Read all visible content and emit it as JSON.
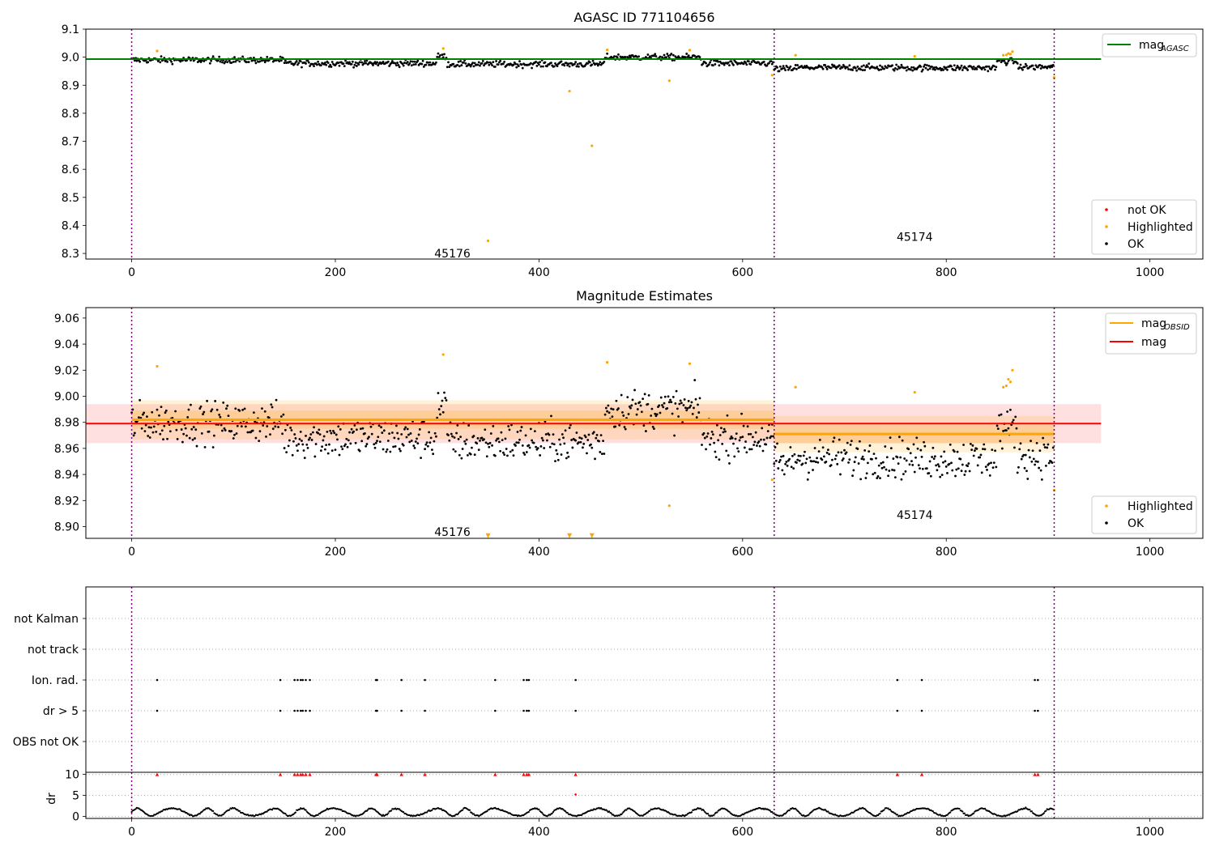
{
  "chart_data": [
    {
      "id": "agasc",
      "type": "scatter",
      "title": "AGASC ID 771104656",
      "xlim": [
        -45,
        1052
      ],
      "ylim": [
        8.28,
        9.1
      ],
      "xticks": [
        0,
        200,
        400,
        600,
        800,
        1000
      ],
      "yticks": [
        8.3,
        8.4,
        8.5,
        8.6,
        8.7,
        8.8,
        8.9,
        9.0,
        9.1
      ],
      "ytick_decimals": 1,
      "grid": false,
      "obs_boundaries": [
        0,
        631,
        906
      ],
      "obs_labels": [
        {
          "text": "45176",
          "x": 315,
          "y": 8.3
        },
        {
          "text": "45174",
          "x": 769,
          "y": 8.36
        }
      ],
      "mag_agasc": {
        "value": 8.993,
        "x_range": [
          -45,
          952
        ],
        "color": "#008000"
      },
      "baseline": {
        "segments": [
          {
            "x0": 0,
            "x1": 150,
            "level": 8.99
          },
          {
            "x0": 150,
            "x1": 300,
            "level": 8.978
          },
          {
            "x0": 300,
            "x1": 310,
            "level": 9.002
          },
          {
            "x0": 310,
            "x1": 465,
            "level": 8.975
          },
          {
            "x0": 465,
            "x1": 560,
            "level": 9.0
          },
          {
            "x0": 560,
            "x1": 631,
            "level": 8.978
          },
          {
            "x0": 631,
            "x1": 650,
            "level": 8.958
          },
          {
            "x0": 650,
            "x1": 760,
            "level": 8.963
          },
          {
            "x0": 760,
            "x1": 850,
            "level": 8.962
          },
          {
            "x0": 850,
            "x1": 870,
            "level": 8.985
          },
          {
            "x0": 870,
            "x1": 906,
            "level": 8.965
          }
        ],
        "noise": 0.008,
        "n": 906
      },
      "highlighted": [
        {
          "x": 25,
          "y": 9.022
        },
        {
          "x": 306,
          "y": 9.031
        },
        {
          "x": 350,
          "y": 8.345
        },
        {
          "x": 430,
          "y": 8.879
        },
        {
          "x": 452,
          "y": 8.684
        },
        {
          "x": 467,
          "y": 9.026
        },
        {
          "x": 528,
          "y": 8.916
        },
        {
          "x": 548,
          "y": 9.025
        },
        {
          "x": 629,
          "y": 8.936
        },
        {
          "x": 652,
          "y": 9.007
        },
        {
          "x": 769,
          "y": 9.003
        },
        {
          "x": 856,
          "y": 9.007
        },
        {
          "x": 859,
          "y": 9.008
        },
        {
          "x": 861,
          "y": 9.013
        },
        {
          "x": 863,
          "y": 9.011
        },
        {
          "x": 865,
          "y": 9.02
        },
        {
          "x": 906,
          "y": 8.928
        }
      ],
      "legend_top": [
        {
          "label": "mag",
          "subscript": "AGASC",
          "color": "#008000",
          "marker": "line"
        }
      ],
      "legend_bottom": [
        {
          "label": "not OK",
          "color": "#ff0000"
        },
        {
          "label": "Highlighted",
          "color": "#ffa500"
        },
        {
          "label": "OK",
          "color": "#000000"
        }
      ]
    },
    {
      "id": "estimates",
      "type": "scatter",
      "title": "Magnitude Estimates",
      "xlim": [
        -45,
        1052
      ],
      "ylim": [
        8.891,
        9.068
      ],
      "xticks": [
        0,
        200,
        400,
        600,
        800,
        1000
      ],
      "yticks": [
        8.9,
        8.92,
        8.94,
        8.96,
        8.98,
        9.0,
        9.02,
        9.04,
        9.06
      ],
      "ytick_decimals": 2,
      "grid": false,
      "obs_boundaries": [
        0,
        631,
        906
      ],
      "obs_labels": [
        {
          "text": "45176",
          "x": 315,
          "y": 8.896
        },
        {
          "text": "45174",
          "x": 769,
          "y": 8.909
        }
      ],
      "mag_overall": {
        "value": 8.979,
        "band": [
          8.964,
          8.994
        ],
        "x_range": [
          -45,
          952
        ],
        "color": "#ff0000"
      },
      "mag_obsid": [
        {
          "x0": 0,
          "x1": 631,
          "value": 8.982,
          "band": [
            8.967,
            8.997
          ],
          "inner": [
            8.975,
            8.989
          ]
        },
        {
          "x0": 631,
          "x1": 906,
          "value": 8.971,
          "band": [
            8.957,
            8.985
          ],
          "inner": [
            8.964,
            8.978
          ]
        }
      ],
      "highlighted": [
        {
          "x": 25,
          "y": 9.023
        },
        {
          "x": 306,
          "y": 9.032
        },
        {
          "x": 350,
          "y": 8.893,
          "marker": "triangle"
        },
        {
          "x": 430,
          "y": 8.893,
          "marker": "triangle"
        },
        {
          "x": 452,
          "y": 8.893,
          "marker": "triangle"
        },
        {
          "x": 467,
          "y": 9.026
        },
        {
          "x": 528,
          "y": 8.916
        },
        {
          "x": 548,
          "y": 9.025
        },
        {
          "x": 629,
          "y": 8.936
        },
        {
          "x": 652,
          "y": 9.007
        },
        {
          "x": 769,
          "y": 9.003
        },
        {
          "x": 856,
          "y": 9.007
        },
        {
          "x": 859,
          "y": 9.008
        },
        {
          "x": 861,
          "y": 9.013
        },
        {
          "x": 863,
          "y": 9.011
        },
        {
          "x": 865,
          "y": 9.02
        },
        {
          "x": 906,
          "y": 8.928
        }
      ],
      "legend_top": [
        {
          "label": "mag",
          "subscript": "OBSID",
          "color": "#ffa500",
          "marker": "line"
        },
        {
          "label": "mag",
          "subscript": "",
          "color": "#ff0000",
          "marker": "line"
        }
      ],
      "legend_bottom": [
        {
          "label": "Highlighted",
          "color": "#ffa500"
        },
        {
          "label": "OK",
          "color": "#000000"
        }
      ]
    },
    {
      "id": "flags",
      "type": "scatter",
      "xlim": [
        -45,
        1052
      ],
      "categories": [
        "OBS not OK",
        "dr > 5",
        "Ion. rad.",
        "not track",
        "not Kalman"
      ],
      "grid": true,
      "obs_boundaries": [
        0,
        631,
        906
      ],
      "flagged_x": [
        25,
        146,
        160,
        163,
        166,
        168,
        171,
        175,
        240,
        241,
        265,
        288,
        357,
        385,
        388,
        390,
        436,
        752,
        776,
        887,
        890
      ],
      "rows_flagged": [
        "dr > 5",
        "Ion. rad."
      ]
    },
    {
      "id": "dr",
      "type": "scatter",
      "ylabel": "dr",
      "xlim": [
        -45,
        1052
      ],
      "ylim": [
        -0.5,
        10.5
      ],
      "xticks": [
        0,
        200,
        400,
        600,
        800,
        1000
      ],
      "yticks": [
        0,
        5,
        10
      ],
      "grid": true,
      "obs_boundaries": [
        0,
        631,
        906
      ],
      "clipped_value": 10,
      "outlier": {
        "x": 436,
        "y": 5.2
      },
      "flagged_x": [
        25,
        146,
        160,
        163,
        166,
        168,
        171,
        175,
        240,
        241,
        265,
        288,
        357,
        385,
        388,
        390,
        436,
        752,
        776,
        887,
        890
      ],
      "n": 906
    }
  ],
  "colors": {
    "ok": "#000000",
    "highlighted": "#ffa500",
    "not_ok": "#ff0000",
    "boundary": "#7f007f"
  }
}
